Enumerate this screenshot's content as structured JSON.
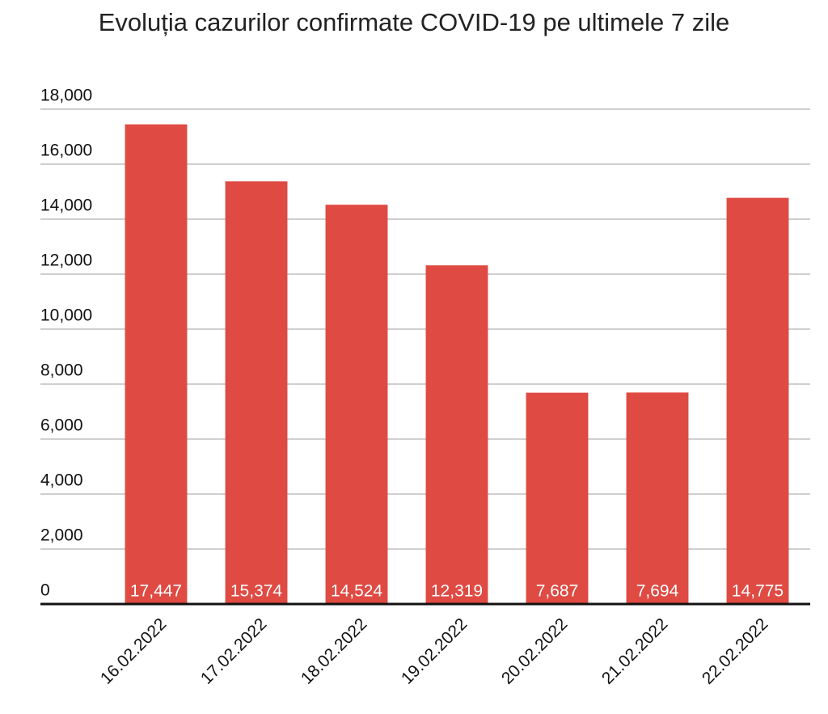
{
  "chart_data": {
    "type": "bar",
    "title": "Evoluția cazurilor confirmate COVID-19 pe ultimele 7 zile",
    "categories": [
      "16.02.2022",
      "17.02.2022",
      "18.02.2022",
      "19.02.2022",
      "20.02.2022",
      "21.02.2022",
      "22.02.2022"
    ],
    "values": [
      17447,
      15374,
      14524,
      12319,
      7687,
      7694,
      14775
    ],
    "value_labels": [
      "17,447",
      "15,374",
      "14,524",
      "12,319",
      "7,687",
      "7,694",
      "14,775"
    ],
    "color": "#df4a43",
    "ylim": [
      0,
      18000
    ],
    "yticks": [
      0,
      {
        "value": 2000,
        "label": "2,000"
      },
      {
        "value": 4000,
        "label": "4,000"
      },
      {
        "value": 6000,
        "label": "6,000"
      },
      {
        "value": 8000,
        "label": "8,000"
      },
      {
        "value": 10000,
        "label": "10,000"
      },
      {
        "value": 12000,
        "label": "12,000"
      },
      {
        "value": 14000,
        "label": "14,000"
      },
      {
        "value": 16000,
        "label": "16,000"
      },
      {
        "value": 18000,
        "label": "18,000"
      }
    ],
    "grid": true
  }
}
